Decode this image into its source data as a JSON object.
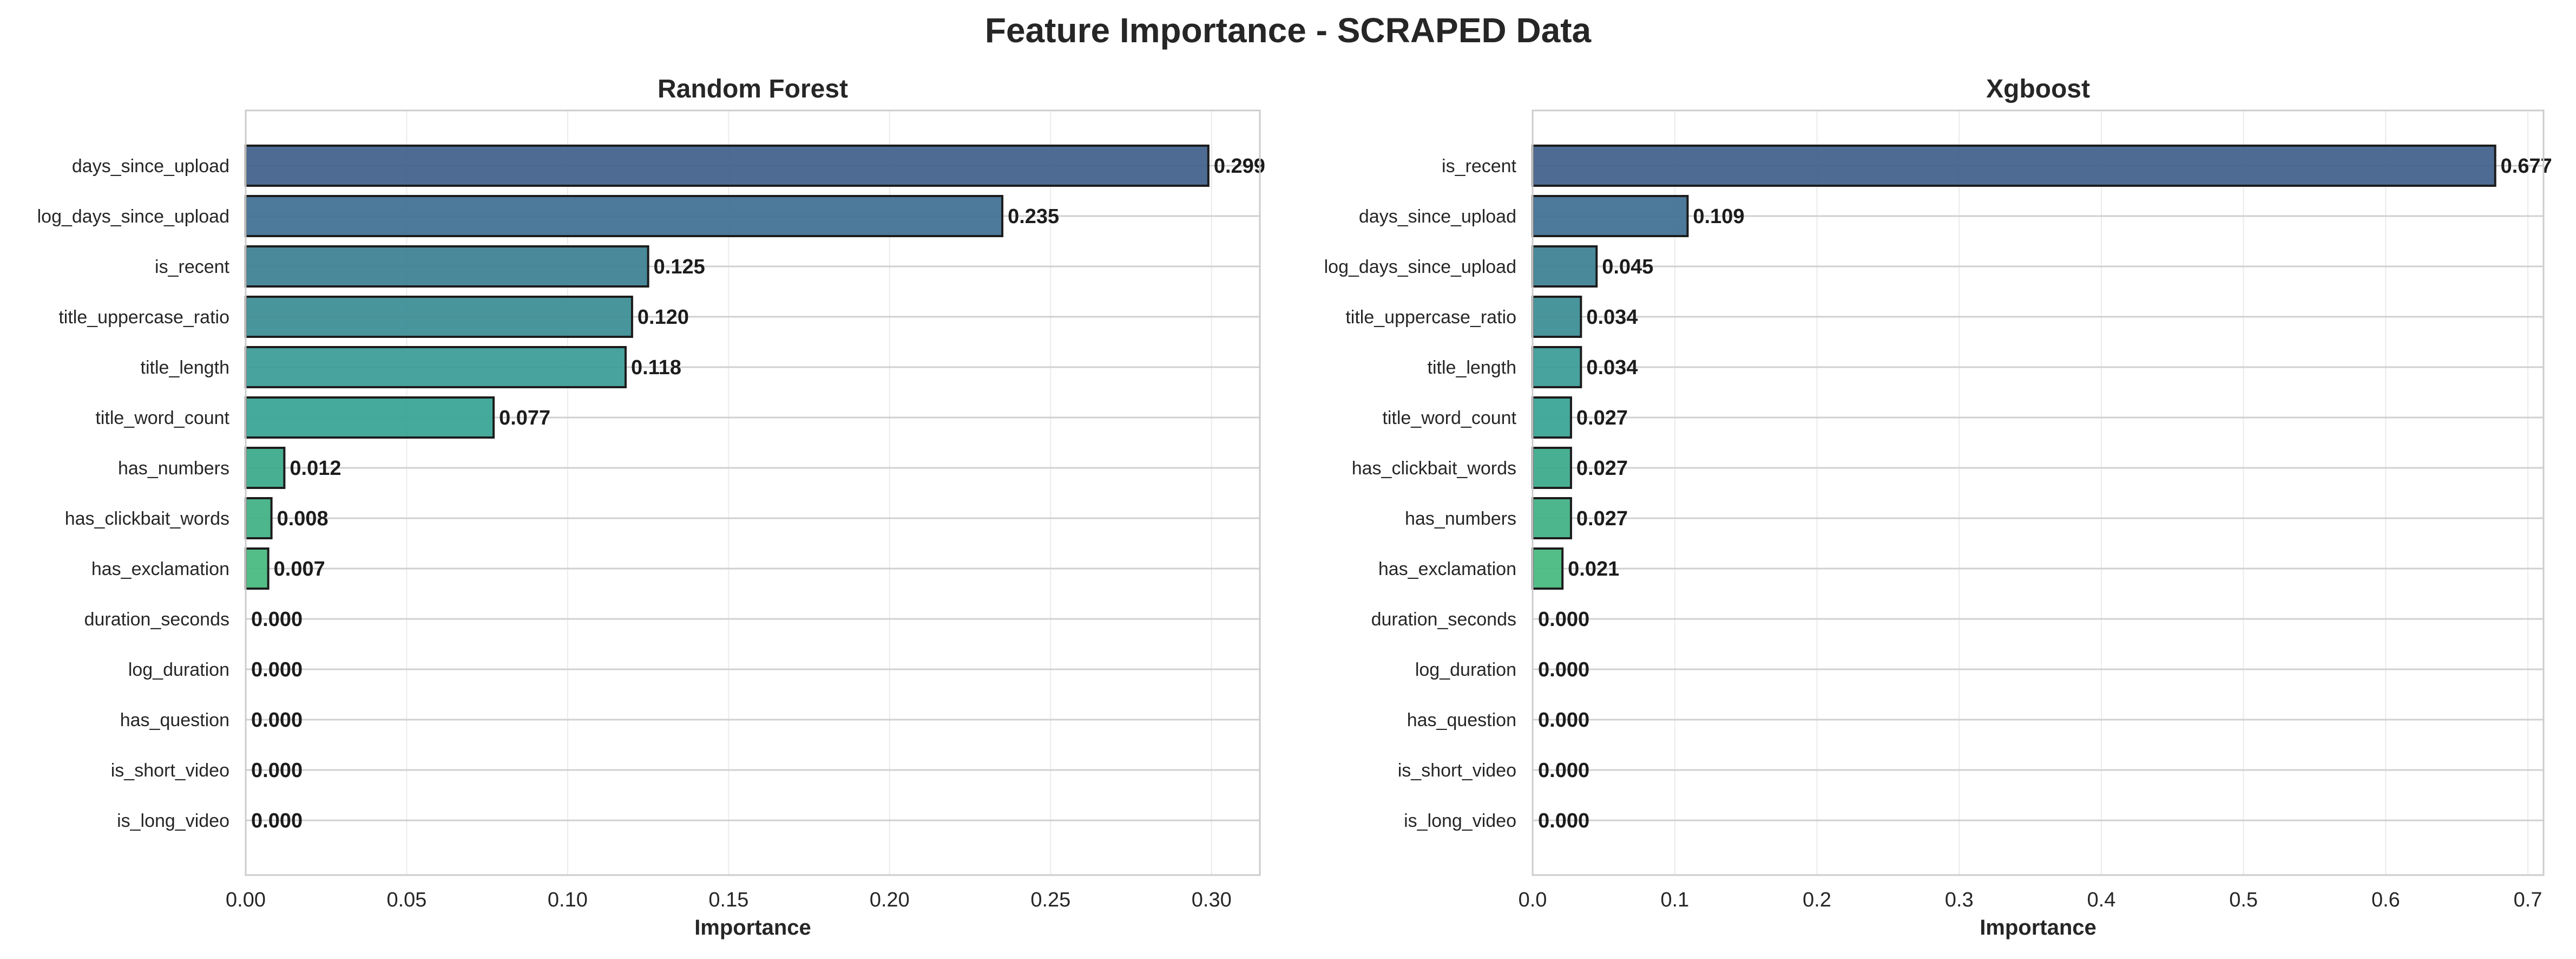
{
  "title": "Feature Importance - SCRAPED Data",
  "chart_data": [
    {
      "type": "bar",
      "orientation": "horizontal",
      "title": "Random Forest",
      "xlabel": "Importance",
      "ylabel": "",
      "xlim": [
        0,
        0.315
      ],
      "xticks": [
        0.0,
        0.05,
        0.1,
        0.15,
        0.2,
        0.25,
        0.3
      ],
      "xtick_labels": [
        "0.00",
        "0.05",
        "0.10",
        "0.15",
        "0.20",
        "0.25",
        "0.30"
      ],
      "grid": true,
      "categories": [
        "days_since_upload",
        "log_days_since_upload",
        "is_recent",
        "title_uppercase_ratio",
        "title_length",
        "title_word_count",
        "has_numbers",
        "has_clickbait_words",
        "has_exclamation",
        "duration_seconds",
        "log_duration",
        "has_question",
        "is_short_video",
        "is_long_video"
      ],
      "values": [
        0.299,
        0.235,
        0.125,
        0.12,
        0.118,
        0.077,
        0.012,
        0.008,
        0.007,
        0.0,
        0.0,
        0.0,
        0.0,
        0.0
      ],
      "value_labels": [
        "0.299",
        "0.235",
        "0.125",
        "0.120",
        "0.118",
        "0.077",
        "0.012",
        "0.008",
        "0.007",
        "0.000",
        "0.000",
        "0.000",
        "0.000",
        "0.000"
      ],
      "colors": [
        "#3e5e8a",
        "#3e6e91",
        "#397f90",
        "#3a8c94",
        "#389a96",
        "#35a292",
        "#3aa88a",
        "#3eb083",
        "#44b87d",
        "#58c070",
        "#6ac66a",
        "#7ccb64",
        "#8ed05e",
        "#a0d558"
      ]
    },
    {
      "type": "bar",
      "orientation": "horizontal",
      "title": "Xgboost",
      "xlabel": "Importance",
      "ylabel": "",
      "xlim": [
        0,
        0.711
      ],
      "xticks": [
        0.0,
        0.1,
        0.2,
        0.3,
        0.4,
        0.5,
        0.6,
        0.7
      ],
      "xtick_labels": [
        "0.0",
        "0.1",
        "0.2",
        "0.3",
        "0.4",
        "0.5",
        "0.6",
        "0.7"
      ],
      "grid": true,
      "categories": [
        "is_recent",
        "days_since_upload",
        "log_days_since_upload",
        "title_uppercase_ratio",
        "title_length",
        "title_word_count",
        "has_clickbait_words",
        "has_numbers",
        "has_exclamation",
        "duration_seconds",
        "log_duration",
        "has_question",
        "is_short_video",
        "is_long_video"
      ],
      "values": [
        0.677,
        0.109,
        0.045,
        0.034,
        0.034,
        0.027,
        0.027,
        0.027,
        0.021,
        0.0,
        0.0,
        0.0,
        0.0,
        0.0
      ],
      "value_labels": [
        "0.677",
        "0.109",
        "0.045",
        "0.034",
        "0.034",
        "0.027",
        "0.027",
        "0.027",
        "0.021",
        "0.000",
        "0.000",
        "0.000",
        "0.000",
        "0.000"
      ],
      "colors": [
        "#3e5e8a",
        "#3e6e91",
        "#397f90",
        "#3a8c94",
        "#389a96",
        "#35a292",
        "#3aa88a",
        "#3eb083",
        "#44b87d",
        "#58c070",
        "#6ac66a",
        "#7ccb64",
        "#8ed05e",
        "#a0d558"
      ]
    }
  ]
}
